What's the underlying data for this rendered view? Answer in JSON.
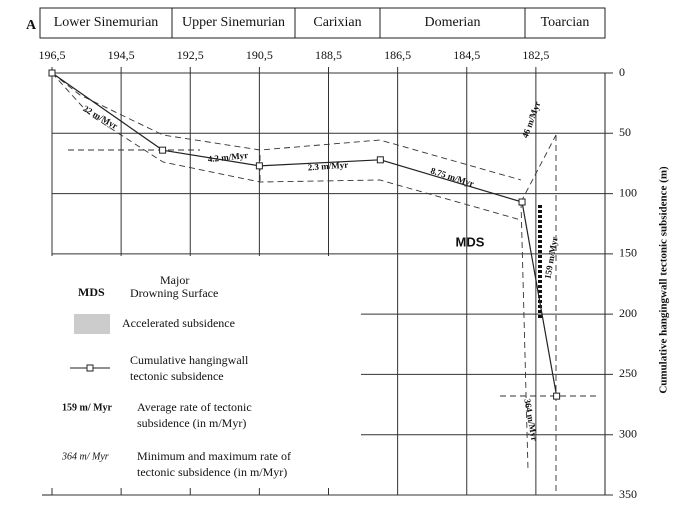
{
  "chart_data": {
    "type": "line",
    "panel_label": "A",
    "stages": [
      "Lower Sinemurian",
      "Upper Sinemurian",
      "Carixian",
      "Domerian",
      "Toarcian"
    ],
    "y_label": "Cumulative hangingwall  tectonic subsidence (m)",
    "x": [
      196.5,
      193.3,
      190.5,
      187.0,
      182.9,
      181.9
    ],
    "series": [
      {
        "name": "Cumulative hangingwall tectonic subsidence",
        "color": "#222",
        "values": [
          0,
          64,
          77,
          72,
          107,
          268
        ]
      }
    ],
    "xlim": [
      196.5,
      180.5
    ],
    "xticks": [
      {
        "value": 196.5,
        "label": "196,5"
      },
      {
        "value": 194.5,
        "label": "194,5"
      },
      {
        "value": 192.5,
        "label": "192,5"
      },
      {
        "value": 190.5,
        "label": "190,5"
      },
      {
        "value": 188.5,
        "label": "188,5"
      },
      {
        "value": 186.5,
        "label": "186,5"
      },
      {
        "value": 184.5,
        "label": "184,5"
      },
      {
        "value": 182.5,
        "label": "182,5"
      }
    ],
    "ylim": [
      0,
      350
    ],
    "yticks": [
      0,
      50,
      100,
      150,
      200,
      250,
      300,
      350
    ],
    "grid": true,
    "annotations": [
      "22 m/Myr",
      "4.2 m/Myr",
      "2.3 m/Myr",
      "8.75 m/Myr",
      "46 m/Myr",
      "159 m/Myr",
      "364 m/Myr",
      "MDS"
    ],
    "legend": {
      "mds": "MDS",
      "mds_text": [
        "Major",
        "Drowning Surface"
      ],
      "accelerated": "Accelerated subsidence",
      "cumulative": [
        "Cumulative hangingwall",
        "tectonic subsidence"
      ],
      "avg_sample": "159 m/ Myr",
      "avg_text": [
        "Average rate of tectonic",
        "subsidence  (in m/Myr)"
      ],
      "minmax_sample": "364 m/ Myr",
      "minmax_text": [
        "Minimum and maximum  rate of",
        "tectonic subsidence  (in m/Myr)"
      ]
    }
  }
}
